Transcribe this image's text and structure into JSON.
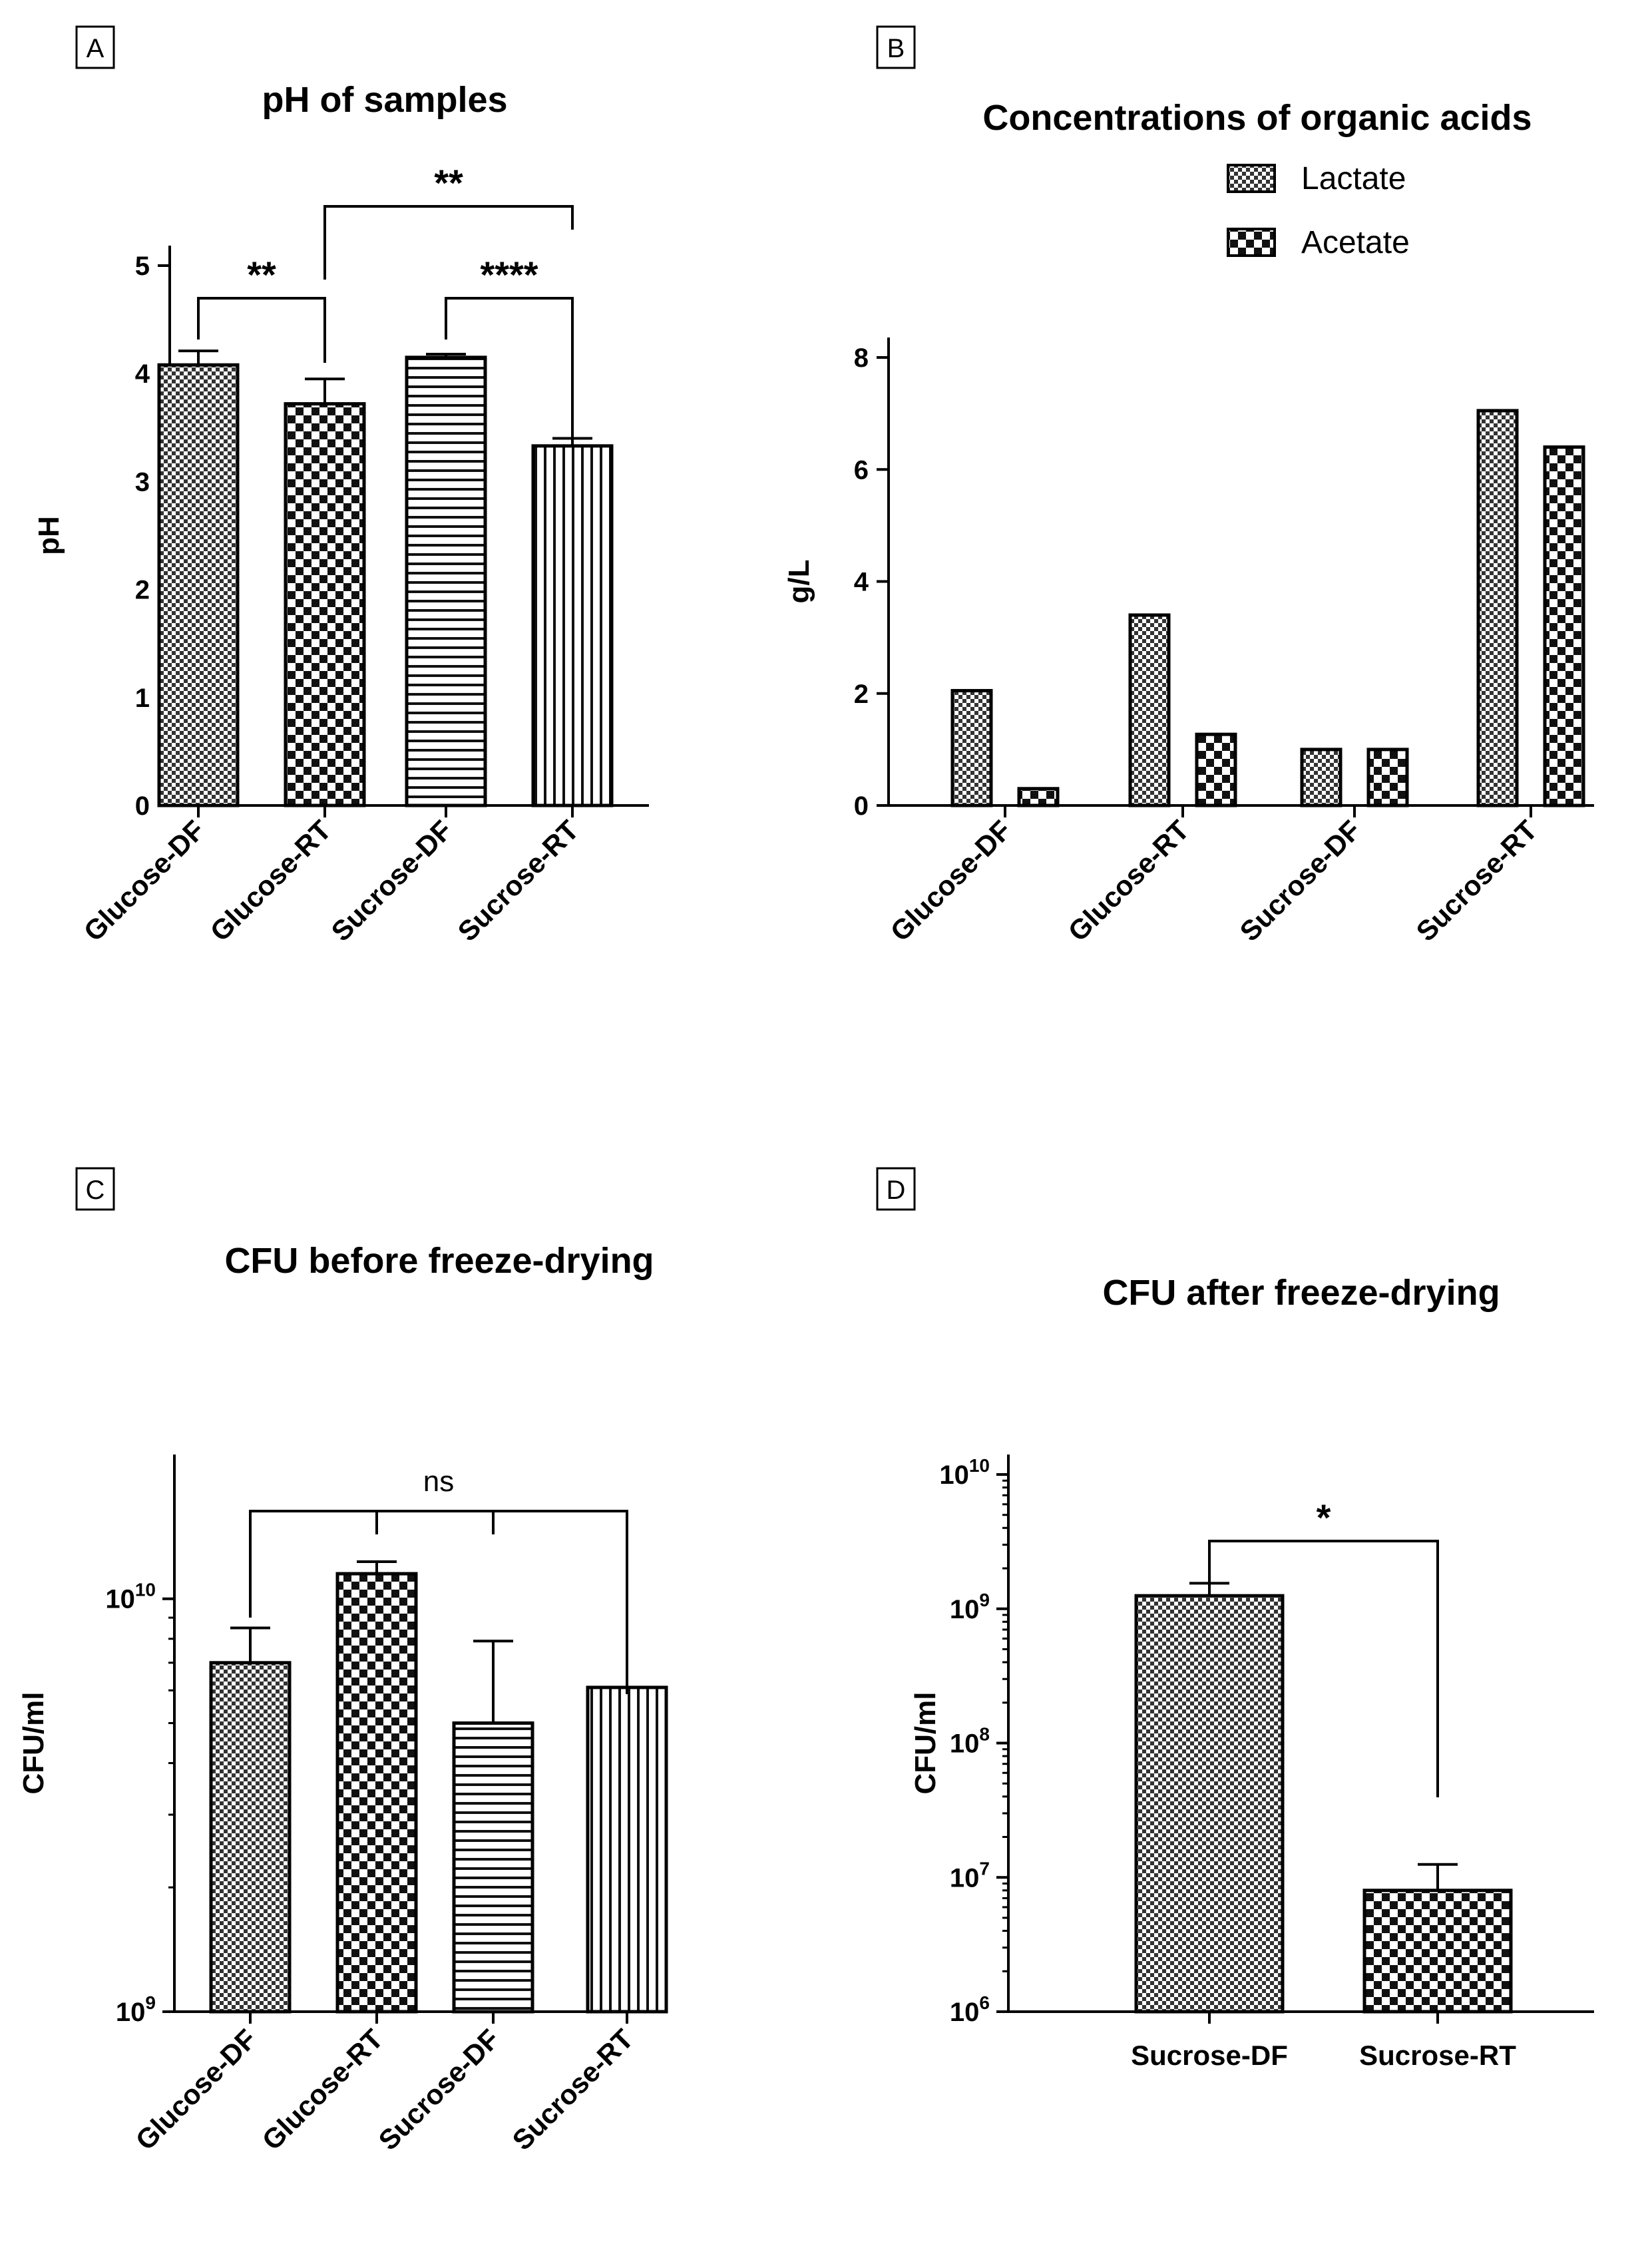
{
  "chart_data": [
    {
      "panel": "A",
      "type": "bar",
      "title": "pH of samples",
      "ylabel": "pH",
      "ylim": [
        0,
        5
      ],
      "yticks": [
        "0",
        "1",
        "2",
        "3",
        "4",
        "5"
      ],
      "categories": [
        "Glucose-DF",
        "Glucose-RT",
        "Sucrose-DF",
        "Sucrose-RT"
      ],
      "values": [
        4.08,
        3.72,
        4.15,
        3.33
      ],
      "errors": [
        0.13,
        0.23,
        0.03,
        0.07
      ],
      "patterns": [
        "checker",
        "diamond",
        "hlines",
        "vlines"
      ],
      "significance": [
        {
          "from": 0,
          "to": 1,
          "label": "**"
        },
        {
          "from": 2,
          "to": 3,
          "label": "****"
        },
        {
          "from": 1,
          "to": 3,
          "label": "**",
          "level": 2
        }
      ]
    },
    {
      "panel": "B",
      "type": "bar",
      "title": "Concentrations of organic acids",
      "ylabel": "g/L",
      "ylim": [
        0,
        8
      ],
      "yticks": [
        "0",
        "2",
        "4",
        "6",
        "8"
      ],
      "categories": [
        "Glucose-DF",
        "Glucose-RT",
        "Sucrose-DF",
        "Sucrose-RT"
      ],
      "series": [
        {
          "name": "Lactate",
          "values": [
            2.05,
            3.4,
            1.0,
            7.05
          ],
          "pattern": "checker"
        },
        {
          "name": "Acetate",
          "values": [
            0.3,
            1.27,
            1.0,
            6.4
          ],
          "pattern": "diamond"
        }
      ],
      "legend": "top-right"
    },
    {
      "panel": "C",
      "type": "bar",
      "title": "CFU before freeze-drying",
      "ylabel": "CFU/ml",
      "yscale": "log",
      "ylim": [
        1000000000,
        20000000000
      ],
      "yticks": [
        {
          "value": 1000000000,
          "base": "10",
          "exp": "9"
        },
        {
          "value": 10000000000,
          "base": "10",
          "exp": "10"
        }
      ],
      "categories": [
        "Glucose-DF",
        "Glucose-RT",
        "Sucrose-DF",
        "Sucrose-RT"
      ],
      "values": [
        7000000000,
        11500000000,
        5000000000,
        6100000000
      ],
      "errors_upper": [
        8500000000,
        12300000000,
        7900000000,
        null
      ],
      "patterns": [
        "checker",
        "diamond",
        "hlines",
        "vlines"
      ],
      "significance": [
        {
          "from": 0,
          "to": 3,
          "label": "ns",
          "group": [
            0,
            1,
            2,
            3
          ]
        }
      ]
    },
    {
      "panel": "D",
      "type": "bar",
      "title": "CFU after freeze-drying",
      "ylabel": "CFU/ml",
      "yscale": "log",
      "ylim": [
        1000000,
        10000000000
      ],
      "yticks": [
        {
          "value": 1000000,
          "base": "10",
          "exp": "6"
        },
        {
          "value": 10000000,
          "base": "10",
          "exp": "7"
        },
        {
          "value": 100000000,
          "base": "10",
          "exp": "8"
        },
        {
          "value": 1000000000,
          "base": "10",
          "exp": "9"
        },
        {
          "value": 10000000000,
          "base": "10",
          "exp": "10"
        }
      ],
      "categories": [
        "Sucrose-DF",
        "Sucrose-RT"
      ],
      "values": [
        1250000000,
        8000000
      ],
      "errors_upper": [
        1550000000,
        12500000
      ],
      "patterns": [
        "checker",
        "diamond"
      ],
      "significance": [
        {
          "from": 0,
          "to": 1,
          "label": "*"
        }
      ]
    }
  ]
}
